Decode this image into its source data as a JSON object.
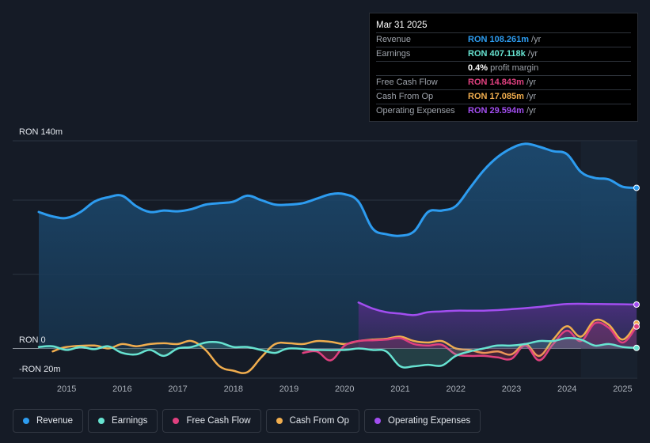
{
  "tooltip": {
    "date": "Mar 31 2025",
    "rows": [
      {
        "label": "Revenue",
        "value": "RON 108.261m",
        "unit": "/yr",
        "color": "#2d9cf0"
      },
      {
        "label": "Earnings",
        "value": "RON 407.118k",
        "unit": "/yr",
        "color": "#67e3d1"
      },
      {
        "label": "",
        "value": "0.4%",
        "unit": "profit margin",
        "color": "#ffffff"
      },
      {
        "label": "Free Cash Flow",
        "value": "RON 14.843m",
        "unit": "/yr",
        "color": "#e0407f"
      },
      {
        "label": "Cash From Op",
        "value": "RON 17.085m",
        "unit": "/yr",
        "color": "#f0ad4e"
      },
      {
        "label": "Operating Expenses",
        "value": "RON 29.594m",
        "unit": "/yr",
        "color": "#a24ef0"
      }
    ]
  },
  "legend": [
    {
      "label": "Revenue",
      "color": "#2d9cf0"
    },
    {
      "label": "Earnings",
      "color": "#67e3d1"
    },
    {
      "label": "Free Cash Flow",
      "color": "#e0407f"
    },
    {
      "label": "Cash From Op",
      "color": "#f0ad4e"
    },
    {
      "label": "Operating Expenses",
      "color": "#a24ef0"
    }
  ],
  "chart_data": {
    "type": "area",
    "unit": "RON m",
    "y_labels": {
      "top": "RON 140m",
      "zero": "RON 0",
      "bottom": "-RON 20m"
    },
    "ylim": [
      -20,
      140
    ],
    "xlim": [
      2014.5,
      2025.25
    ],
    "x_ticks": [
      "2015",
      "2016",
      "2017",
      "2018",
      "2019",
      "2020",
      "2021",
      "2022",
      "2023",
      "2024",
      "2025"
    ],
    "highlight_from": 2024.25,
    "series": [
      {
        "name": "Revenue",
        "color": "#2d9cf0",
        "fill": true,
        "points": [
          [
            2014.5,
            92
          ],
          [
            2014.75,
            89
          ],
          [
            2015.0,
            88
          ],
          [
            2015.25,
            92
          ],
          [
            2015.5,
            99
          ],
          [
            2015.75,
            102
          ],
          [
            2016.0,
            103
          ],
          [
            2016.25,
            96
          ],
          [
            2016.5,
            92
          ],
          [
            2016.75,
            93
          ],
          [
            2017.0,
            92.5
          ],
          [
            2017.25,
            94
          ],
          [
            2017.5,
            97
          ],
          [
            2017.75,
            98
          ],
          [
            2018.0,
            99
          ],
          [
            2018.25,
            103
          ],
          [
            2018.5,
            100
          ],
          [
            2018.75,
            97
          ],
          [
            2019.0,
            97
          ],
          [
            2019.25,
            98
          ],
          [
            2019.5,
            101
          ],
          [
            2019.75,
            104
          ],
          [
            2020.0,
            104
          ],
          [
            2020.25,
            99
          ],
          [
            2020.5,
            81
          ],
          [
            2020.75,
            77
          ],
          [
            2021.0,
            76
          ],
          [
            2021.25,
            79
          ],
          [
            2021.5,
            92
          ],
          [
            2021.75,
            93
          ],
          [
            2022.0,
            96
          ],
          [
            2022.25,
            108
          ],
          [
            2022.5,
            120
          ],
          [
            2022.75,
            129
          ],
          [
            2023.0,
            135
          ],
          [
            2023.25,
            138
          ],
          [
            2023.5,
            136
          ],
          [
            2023.75,
            133
          ],
          [
            2024.0,
            131
          ],
          [
            2024.25,
            119
          ],
          [
            2024.5,
            115
          ],
          [
            2024.75,
            114
          ],
          [
            2025.0,
            109
          ],
          [
            2025.25,
            108.3
          ]
        ]
      },
      {
        "name": "Operating Expenses",
        "color": "#a24ef0",
        "fill": true,
        "points": [
          [
            2020.25,
            31
          ],
          [
            2020.5,
            27
          ],
          [
            2020.75,
            24.5
          ],
          [
            2021.0,
            23.5
          ],
          [
            2021.25,
            22.5
          ],
          [
            2021.5,
            24.5
          ],
          [
            2021.75,
            25
          ],
          [
            2022.0,
            25.5
          ],
          [
            2022.5,
            25.5
          ],
          [
            2023.0,
            26.5
          ],
          [
            2023.5,
            28
          ],
          [
            2024.0,
            30
          ],
          [
            2024.5,
            30
          ],
          [
            2025.0,
            29.8
          ],
          [
            2025.25,
            29.6
          ]
        ]
      },
      {
        "name": "Cash From Op",
        "color": "#f0ad4e",
        "fill": false,
        "points": [
          [
            2014.75,
            -2
          ],
          [
            2015.0,
            1
          ],
          [
            2015.5,
            2
          ],
          [
            2015.75,
            0
          ],
          [
            2016.0,
            3
          ],
          [
            2016.25,
            1.5
          ],
          [
            2016.5,
            3
          ],
          [
            2016.75,
            3.5
          ],
          [
            2017.0,
            3
          ],
          [
            2017.25,
            5
          ],
          [
            2017.5,
            -1
          ],
          [
            2017.75,
            -12
          ],
          [
            2018.0,
            -15
          ],
          [
            2018.25,
            -16
          ],
          [
            2018.5,
            -6
          ],
          [
            2018.75,
            3
          ],
          [
            2019.0,
            3.5
          ],
          [
            2019.25,
            3
          ],
          [
            2019.5,
            5
          ],
          [
            2019.75,
            4.5
          ],
          [
            2020.0,
            3
          ],
          [
            2020.25,
            5
          ],
          [
            2020.5,
            6
          ],
          [
            2020.75,
            6.5
          ],
          [
            2021.0,
            8
          ],
          [
            2021.25,
            5
          ],
          [
            2021.5,
            4
          ],
          [
            2021.75,
            5
          ],
          [
            2022.0,
            0
          ],
          [
            2022.25,
            -1
          ],
          [
            2022.5,
            -3
          ],
          [
            2022.75,
            -2
          ],
          [
            2023.0,
            -4
          ],
          [
            2023.25,
            3
          ],
          [
            2023.5,
            -5
          ],
          [
            2023.75,
            6
          ],
          [
            2024.0,
            15
          ],
          [
            2024.25,
            8
          ],
          [
            2024.5,
            19
          ],
          [
            2024.75,
            16
          ],
          [
            2025.0,
            6
          ],
          [
            2025.25,
            17.1
          ]
        ]
      },
      {
        "name": "Free Cash Flow",
        "color": "#e0407f",
        "fill": true,
        "points": [
          [
            2019.25,
            -3
          ],
          [
            2019.5,
            -2
          ],
          [
            2019.75,
            -8
          ],
          [
            2020.0,
            2
          ],
          [
            2020.25,
            5
          ],
          [
            2020.5,
            5.5
          ],
          [
            2020.75,
            6
          ],
          [
            2021.0,
            7
          ],
          [
            2021.25,
            3
          ],
          [
            2021.5,
            2
          ],
          [
            2021.75,
            2.5
          ],
          [
            2022.0,
            -4
          ],
          [
            2022.25,
            -5
          ],
          [
            2022.5,
            -5
          ],
          [
            2022.75,
            -6
          ],
          [
            2023.0,
            -7
          ],
          [
            2023.25,
            2
          ],
          [
            2023.5,
            -8
          ],
          [
            2023.75,
            3
          ],
          [
            2024.0,
            12
          ],
          [
            2024.25,
            5
          ],
          [
            2024.5,
            17
          ],
          [
            2024.75,
            14
          ],
          [
            2025.0,
            4
          ],
          [
            2025.25,
            14.8
          ]
        ]
      },
      {
        "name": "Earnings",
        "color": "#67e3d1",
        "fill": true,
        "points": [
          [
            2014.5,
            1
          ],
          [
            2014.75,
            1.5
          ],
          [
            2015.0,
            -1
          ],
          [
            2015.25,
            1
          ],
          [
            2015.5,
            -0.5
          ],
          [
            2015.75,
            1.5
          ],
          [
            2016.0,
            -3
          ],
          [
            2016.25,
            -4
          ],
          [
            2016.5,
            -1
          ],
          [
            2016.75,
            -5
          ],
          [
            2017.0,
            0
          ],
          [
            2017.25,
            1
          ],
          [
            2017.5,
            4
          ],
          [
            2017.75,
            4
          ],
          [
            2018.0,
            1
          ],
          [
            2018.25,
            1
          ],
          [
            2018.5,
            -1
          ],
          [
            2018.75,
            -3
          ],
          [
            2019.0,
            0
          ],
          [
            2019.5,
            -1
          ],
          [
            2020.0,
            -1
          ],
          [
            2020.25,
            0
          ],
          [
            2020.5,
            -1
          ],
          [
            2020.75,
            -2
          ],
          [
            2021.0,
            -12
          ],
          [
            2021.25,
            -12
          ],
          [
            2021.5,
            -11
          ],
          [
            2021.75,
            -11.5
          ],
          [
            2022.0,
            -5
          ],
          [
            2022.25,
            -2
          ],
          [
            2022.5,
            0
          ],
          [
            2022.75,
            2
          ],
          [
            2023.0,
            2
          ],
          [
            2023.25,
            3
          ],
          [
            2023.5,
            5
          ],
          [
            2023.75,
            5
          ],
          [
            2024.0,
            7
          ],
          [
            2024.25,
            6
          ],
          [
            2024.5,
            2
          ],
          [
            2024.75,
            3
          ],
          [
            2025.0,
            1
          ],
          [
            2025.25,
            0.4
          ]
        ]
      }
    ]
  }
}
